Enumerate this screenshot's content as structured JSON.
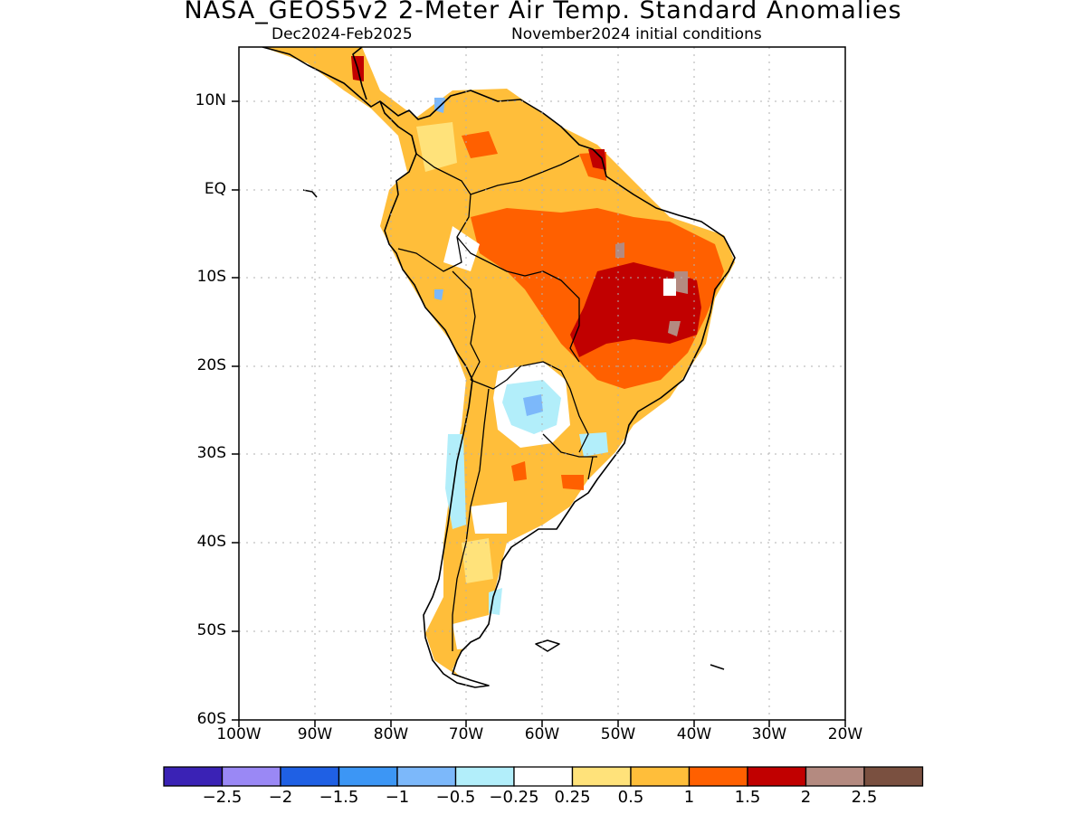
{
  "title": "NASA_GEOS5v2 2-Meter Air Temp. Standard Anomalies",
  "subtitle_left": "Dec2024-Feb2025",
  "subtitle_right": "November2024 initial conditions",
  "lat_labels": [
    "10N",
    "EQ",
    "10S",
    "20S",
    "30S",
    "40S",
    "50S",
    "60S"
  ],
  "lon_labels": [
    "100W",
    "90W",
    "80W",
    "70W",
    "60W",
    "50W",
    "40W",
    "30W",
    "20W"
  ],
  "colorbar": {
    "colors": [
      "#3a22b5",
      "#9a88f5",
      "#1f60e4",
      "#3c96f5",
      "#7cb8fa",
      "#b2eefa",
      "#ffffff",
      "#ffe27a",
      "#ffbe3a",
      "#ff6000",
      "#c10000",
      "#b48a80",
      "#7a5040"
    ],
    "labels": [
      "-2.5",
      "-2",
      "-1.5",
      "-1",
      "-0.5",
      "-0.25",
      "0.25",
      "0.5",
      "1",
      "1.5",
      "2",
      "2.5"
    ]
  },
  "map_extent": {
    "lon": [
      -100,
      -20
    ],
    "lat": [
      -60,
      15
    ]
  }
}
